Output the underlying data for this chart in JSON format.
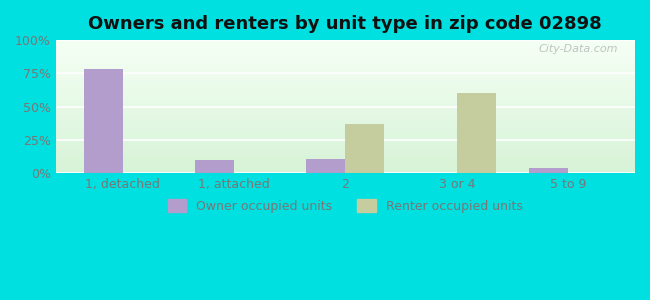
{
  "title": "Owners and renters by unit type in zip code 02898",
  "categories": [
    "1, detached",
    "1, attached",
    "2",
    "3 or 4",
    "5 to 9"
  ],
  "owner_values": [
    78,
    10,
    11,
    0,
    4
  ],
  "renter_values": [
    0,
    0,
    37,
    60,
    0
  ],
  "owner_color": "#b39dcc",
  "renter_color": "#c5cc9d",
  "outer_background": "#00e0e0",
  "plot_bg_top": "#f5fdf5",
  "plot_bg_bottom": "#d8f0d8",
  "ylim": [
    0,
    100
  ],
  "yticks": [
    0,
    25,
    50,
    75,
    100
  ],
  "ytick_labels": [
    "0%",
    "25%",
    "50%",
    "75%",
    "100%"
  ],
  "legend_owner": "Owner occupied units",
  "legend_renter": "Renter occupied units",
  "title_fontsize": 13,
  "tick_fontsize": 9,
  "legend_fontsize": 9,
  "watermark": "City-Data.com",
  "bar_width": 0.35,
  "grid_color": "#ffffff",
  "tick_color": "#777777"
}
